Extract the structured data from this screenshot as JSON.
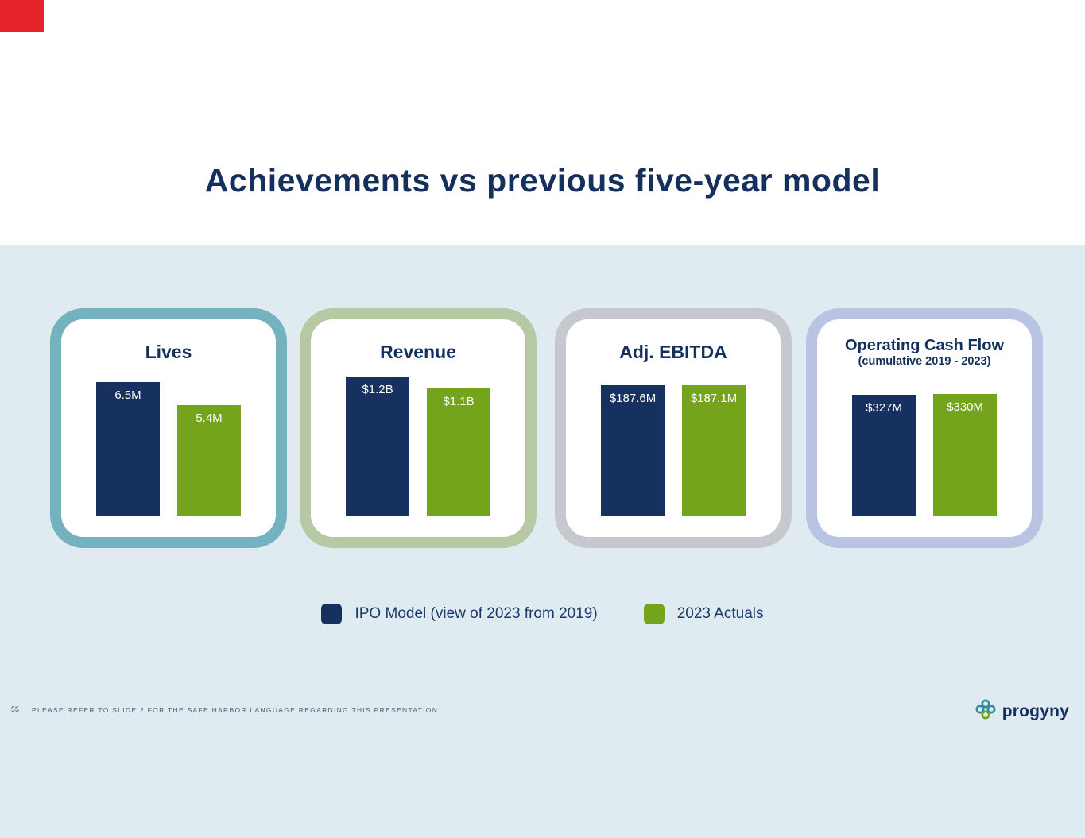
{
  "slide": {
    "title": "Achievements vs previous five-year model",
    "colors": {
      "navy": "#16305f",
      "green": "#74a41c",
      "red_accent": "#e62229",
      "panel_blue": "#e0eaf1"
    }
  },
  "cards": [
    {
      "title": "Lives",
      "subtitle": "",
      "border": "#74b2bf",
      "bars": [
        {
          "label": "6.5M",
          "value": 6.5
        },
        {
          "label": "5.4M",
          "value": 5.4
        }
      ]
    },
    {
      "title": "Revenue",
      "subtitle": "",
      "border": "#b7c8a5",
      "bars": [
        {
          "label": "$1.2B",
          "value": 1.2
        },
        {
          "label": "$1.1B",
          "value": 1.1
        }
      ]
    },
    {
      "title": "Adj. EBITDA",
      "subtitle": "",
      "border": "#c5c8cc",
      "bars": [
        {
          "label": "$187.6M",
          "value": 187.6
        },
        {
          "label": "$187.1M",
          "value": 187.1
        }
      ]
    },
    {
      "title": "Operating Cash Flow",
      "subtitle": "(cumulative 2019 - 2023)",
      "border": "#b9c3e4",
      "bars": [
        {
          "label": "$327M",
          "value": 327
        },
        {
          "label": "$330M",
          "value": 330
        }
      ]
    }
  ],
  "legend": [
    {
      "label": "IPO Model (view of 2023 from 2019)"
    },
    {
      "label": "2023 Actuals"
    }
  ],
  "footer": {
    "page_number": "55",
    "disclaimer": "PLEASE REFER TO SLIDE 2 FOR THE SAFE HARBOR LANGUAGE REGARDING THIS PRESENTATION",
    "logo_text": "progyny"
  },
  "chart_data": [
    {
      "type": "bar",
      "title": "Lives",
      "categories": [
        "IPO Model (view of 2023 from 2019)",
        "2023 Actuals"
      ],
      "values": [
        6.5,
        5.4
      ],
      "value_labels": [
        "6.5M",
        "5.4M"
      ],
      "legend_position": "bottom-center"
    },
    {
      "type": "bar",
      "title": "Revenue",
      "categories": [
        "IPO Model (view of 2023 from 2019)",
        "2023 Actuals"
      ],
      "values": [
        1.2,
        1.1
      ],
      "value_labels": [
        "$1.2B",
        "$1.1B"
      ],
      "legend_position": "bottom-center"
    },
    {
      "type": "bar",
      "title": "Adj. EBITDA",
      "categories": [
        "IPO Model (view of 2023 from 2019)",
        "2023 Actuals"
      ],
      "values": [
        187.6,
        187.1
      ],
      "value_labels": [
        "$187.6M",
        "$187.1M"
      ],
      "legend_position": "bottom-center"
    },
    {
      "type": "bar",
      "title": "Operating Cash Flow (cumulative 2019 - 2023)",
      "categories": [
        "IPO Model (view of 2023 from 2019)",
        "2023 Actuals"
      ],
      "values": [
        327,
        330
      ],
      "value_labels": [
        "$327M",
        "$330M"
      ],
      "legend_position": "bottom-center"
    }
  ]
}
